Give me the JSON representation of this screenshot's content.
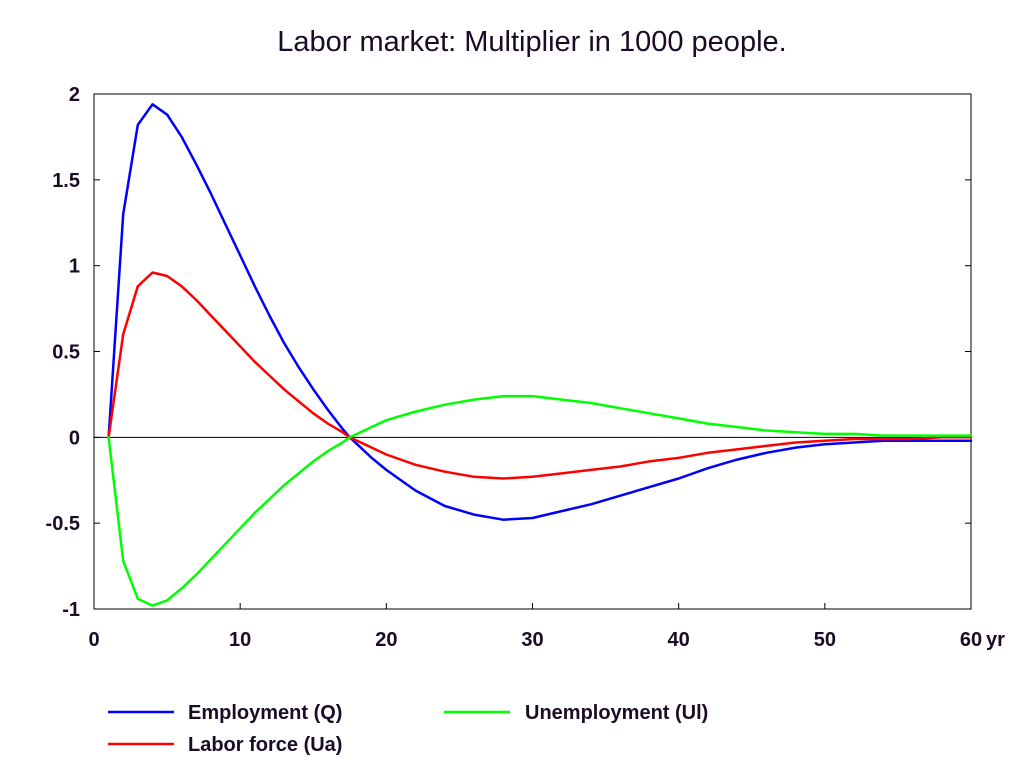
{
  "chart_data": {
    "type": "line",
    "title": "Labor market: Multiplier in 1000 people.",
    "xlabel": "",
    "ylabel": "",
    "x_unit_label": "yr",
    "xlim": [
      0,
      60
    ],
    "ylim": [
      -1,
      2
    ],
    "x_ticks": [
      0,
      10,
      20,
      30,
      40,
      50,
      60
    ],
    "x_tick_labels": [
      "0",
      "10",
      "20",
      "30",
      "40",
      "50",
      "60"
    ],
    "y_ticks": [
      2,
      1.5,
      1,
      0.5,
      0,
      -0.5,
      -1
    ],
    "y_tick_labels": [
      "2",
      "1.5",
      "1",
      "0.5",
      "0",
      "-0.5",
      "-1"
    ],
    "grid": false,
    "zero_line": true,
    "legend_position": "bottom",
    "x": [
      1,
      2,
      3,
      4,
      5,
      6,
      7,
      8,
      9,
      10,
      11,
      12,
      13,
      14,
      15,
      16,
      17,
      17.5,
      18,
      19,
      20,
      22,
      24,
      26,
      28,
      30,
      32,
      34,
      36,
      38,
      40,
      42,
      44,
      46,
      48,
      50,
      52,
      54,
      56,
      58,
      60
    ],
    "series": [
      {
        "name": "Employment (Q)",
        "color": "#0000ff",
        "values": [
          0,
          1.3,
          1.82,
          1.94,
          1.88,
          1.75,
          1.59,
          1.42,
          1.24,
          1.06,
          0.88,
          0.71,
          0.55,
          0.41,
          0.28,
          0.16,
          0.05,
          0,
          -0.04,
          -0.12,
          -0.19,
          -0.31,
          -0.4,
          -0.45,
          -0.48,
          -0.47,
          -0.43,
          -0.39,
          -0.34,
          -0.29,
          -0.24,
          -0.18,
          -0.13,
          -0.09,
          -0.06,
          -0.04,
          -0.03,
          -0.02,
          -0.02,
          -0.02,
          -0.02
        ]
      },
      {
        "name": "Labor force (Ua)",
        "color": "#ff0000",
        "values": [
          0,
          0.6,
          0.88,
          0.96,
          0.94,
          0.88,
          0.8,
          0.71,
          0.62,
          0.53,
          0.44,
          0.36,
          0.28,
          0.21,
          0.14,
          0.08,
          0.03,
          0,
          -0.02,
          -0.06,
          -0.1,
          -0.16,
          -0.2,
          -0.23,
          -0.24,
          -0.23,
          -0.21,
          -0.19,
          -0.17,
          -0.14,
          -0.12,
          -0.09,
          -0.07,
          -0.05,
          -0.03,
          -0.02,
          -0.01,
          -0.01,
          -0.01,
          0,
          0
        ]
      },
      {
        "name": "Unemployment (Ul)",
        "color": "#00ff00",
        "values": [
          0,
          -0.72,
          -0.94,
          -0.98,
          -0.95,
          -0.88,
          -0.8,
          -0.71,
          -0.62,
          -0.53,
          -0.44,
          -0.36,
          -0.28,
          -0.21,
          -0.14,
          -0.08,
          -0.03,
          0,
          0.02,
          0.06,
          0.1,
          0.15,
          0.19,
          0.22,
          0.24,
          0.24,
          0.22,
          0.2,
          0.17,
          0.14,
          0.11,
          0.08,
          0.06,
          0.04,
          0.03,
          0.02,
          0.02,
          0.01,
          0.01,
          0.01,
          0.01
        ]
      }
    ]
  }
}
